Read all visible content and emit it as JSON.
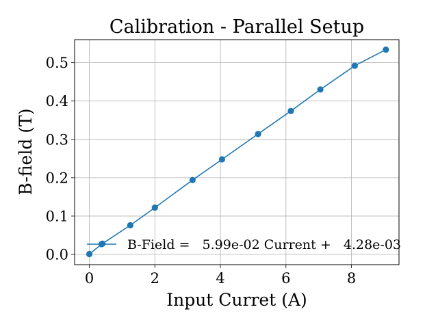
{
  "chart_data": {
    "type": "line",
    "title": "Calibration - Parallel Setup",
    "xlabel": "Input Curret (A)",
    "ylabel": "B-field (T)",
    "xlim": [
      -0.45,
      9.45
    ],
    "ylim": [
      -0.0267,
      0.56
    ],
    "xticks": [
      0,
      2,
      4,
      6,
      8
    ],
    "yticks": [
      0.0,
      0.1,
      0.2,
      0.3,
      0.4,
      0.5
    ],
    "xtick_labels": [
      "0",
      "2",
      "4",
      "6",
      "8"
    ],
    "ytick_labels": [
      "0.0",
      "0.1",
      "0.2",
      "0.3",
      "0.4",
      "0.5"
    ],
    "grid": true,
    "legend_position": "lower-right",
    "series": [
      {
        "name": "B-Field =   5.99e-02 Current +   4.28e-03",
        "color": "#1f77b4",
        "marker": "circle",
        "points": [
          {
            "x": 0.0,
            "y": 0.001
          },
          {
            "x": 0.4,
            "y": 0.028
          },
          {
            "x": 1.25,
            "y": 0.076
          },
          {
            "x": 2.0,
            "y": 0.122
          },
          {
            "x": 3.15,
            "y": 0.194
          },
          {
            "x": 4.05,
            "y": 0.248
          },
          {
            "x": 5.15,
            "y": 0.314
          },
          {
            "x": 6.15,
            "y": 0.374
          },
          {
            "x": 7.05,
            "y": 0.43
          },
          {
            "x": 8.1,
            "y": 0.492
          },
          {
            "x": 9.05,
            "y": 0.534
          }
        ]
      }
    ]
  }
}
